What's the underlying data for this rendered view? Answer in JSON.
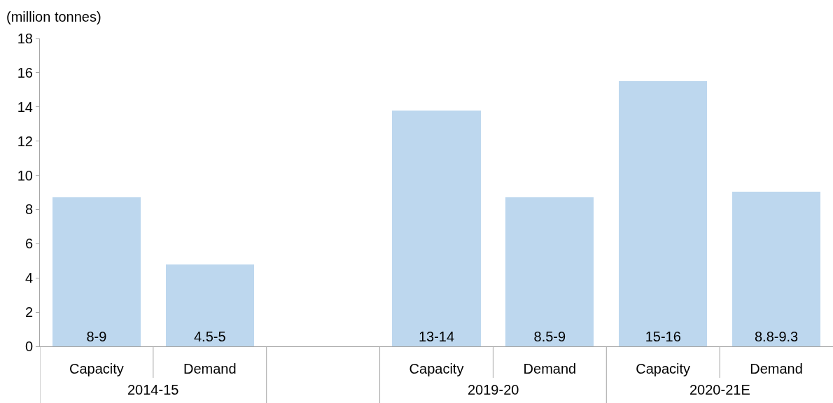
{
  "chart_data": {
    "type": "bar",
    "ylabel": "(million tonnes)",
    "categories": [
      "Capacity",
      "Demand",
      null,
      "Capacity",
      "Demand",
      "Capacity",
      "Demand"
    ],
    "values": [
      8.7,
      4.8,
      null,
      13.8,
      8.7,
      15.5,
      9.05
    ],
    "value_labels": [
      "8-9",
      "4.5-5",
      null,
      "13-14",
      "8.5-9",
      "15-16",
      "8.8-9.3"
    ],
    "color": "#bdd7ee",
    "annotations": [
      "2014-15",
      "2019-20",
      "2020-21E"
    ],
    "ylim": [
      0,
      18
    ],
    "yticks": [
      0,
      2,
      4,
      6,
      8,
      10,
      12,
      14,
      16,
      18
    ],
    "grid": false
  }
}
